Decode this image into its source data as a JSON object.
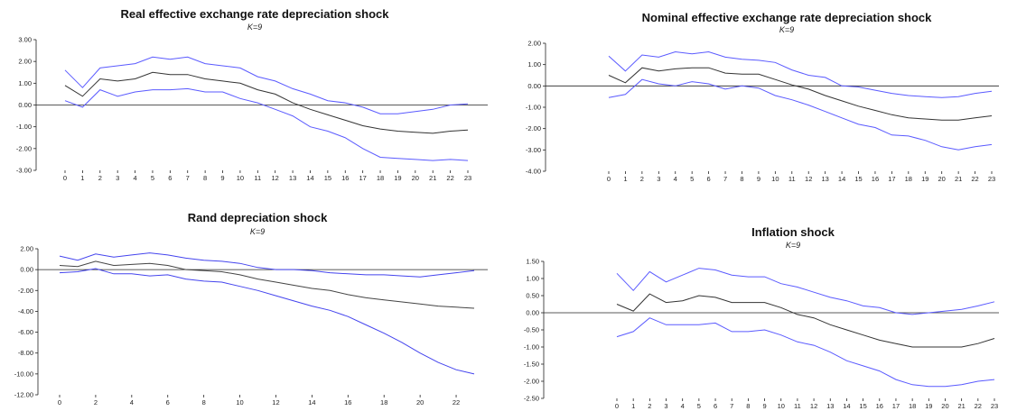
{
  "chart_data": [
    {
      "type": "line",
      "title": "Real effective exchange rate depreciation shock",
      "subtitle": "K=9",
      "xlabel": "",
      "ylabel": "",
      "x": [
        0,
        1,
        2,
        3,
        4,
        5,
        6,
        7,
        8,
        9,
        10,
        11,
        12,
        13,
        14,
        15,
        16,
        17,
        18,
        19,
        20,
        21,
        22,
        23
      ],
      "x_ticks": [
        "0",
        "1",
        "2",
        "3",
        "4",
        "5",
        "6",
        "7",
        "8",
        "9",
        "10",
        "11",
        "12",
        "13",
        "14",
        "15",
        "16",
        "17",
        "18",
        "19",
        "20",
        "21",
        "22",
        "23"
      ],
      "ylim": [
        -3,
        3
      ],
      "y_ticks": [
        "3.00",
        "2.00",
        "1.00",
        "0.00",
        "-1.00",
        "-2.00",
        "-3.00"
      ],
      "series": [
        {
          "role": "upper",
          "color": "#5a5aff",
          "values": [
            1.6,
            0.8,
            1.7,
            1.8,
            1.9,
            2.2,
            2.1,
            2.2,
            1.9,
            1.8,
            1.7,
            1.3,
            1.1,
            0.75,
            0.5,
            0.2,
            0.1,
            -0.1,
            -0.4,
            -0.4,
            -0.3,
            -0.2,
            0.0,
            0.05
          ]
        },
        {
          "role": "response",
          "color": "#333333",
          "values": [
            0.9,
            0.4,
            1.2,
            1.1,
            1.2,
            1.5,
            1.4,
            1.4,
            1.2,
            1.1,
            1.0,
            0.7,
            0.5,
            0.1,
            -0.2,
            -0.45,
            -0.7,
            -0.95,
            -1.1,
            -1.2,
            -1.25,
            -1.3,
            -1.2,
            -1.15
          ]
        },
        {
          "role": "lower",
          "color": "#5a5aff",
          "values": [
            0.2,
            -0.1,
            0.7,
            0.4,
            0.6,
            0.7,
            0.7,
            0.75,
            0.6,
            0.6,
            0.3,
            0.1,
            -0.2,
            -0.5,
            -1.0,
            -1.2,
            -1.5,
            -2.0,
            -2.4,
            -2.45,
            -2.5,
            -2.55,
            -2.5,
            -2.55
          ]
        }
      ]
    },
    {
      "type": "line",
      "title": "Nominal effective exchange rate depreciation shock",
      "subtitle": "K=9",
      "xlabel": "",
      "ylabel": "",
      "x": [
        0,
        1,
        2,
        3,
        4,
        5,
        6,
        7,
        8,
        9,
        10,
        11,
        12,
        13,
        14,
        15,
        16,
        17,
        18,
        19,
        20,
        21,
        22,
        23
      ],
      "x_ticks": [
        "0",
        "1",
        "2",
        "3",
        "4",
        "5",
        "6",
        "7",
        "8",
        "9",
        "10",
        "11",
        "12",
        "13",
        "14",
        "15",
        "16",
        "17",
        "18",
        "19",
        "20",
        "21",
        "22",
        "23"
      ],
      "ylim": [
        -4,
        2
      ],
      "y_ticks": [
        "2.00",
        "1.00",
        "0.00",
        "-1.00",
        "-2.00",
        "-3.00",
        "-4.00"
      ],
      "series": [
        {
          "role": "upper",
          "color": "#5a5aff",
          "values": [
            1.4,
            0.7,
            1.45,
            1.35,
            1.6,
            1.5,
            1.6,
            1.35,
            1.25,
            1.2,
            1.1,
            0.75,
            0.5,
            0.4,
            0.0,
            -0.05,
            -0.2,
            -0.35,
            -0.45,
            -0.5,
            -0.55,
            -0.5,
            -0.35,
            -0.25
          ]
        },
        {
          "role": "response",
          "color": "#333333",
          "values": [
            0.5,
            0.15,
            0.85,
            0.7,
            0.8,
            0.85,
            0.85,
            0.6,
            0.55,
            0.55,
            0.3,
            0.05,
            -0.15,
            -0.45,
            -0.7,
            -0.95,
            -1.15,
            -1.35,
            -1.5,
            -1.55,
            -1.6,
            -1.6,
            -1.5,
            -1.4
          ]
        },
        {
          "role": "lower",
          "color": "#5a5aff",
          "values": [
            -0.55,
            -0.4,
            0.3,
            0.1,
            0.0,
            0.2,
            0.1,
            -0.15,
            0.0,
            -0.1,
            -0.45,
            -0.65,
            -0.9,
            -1.2,
            -1.5,
            -1.8,
            -1.95,
            -2.3,
            -2.35,
            -2.55,
            -2.85,
            -3.0,
            -2.85,
            -2.75
          ]
        }
      ]
    },
    {
      "type": "line",
      "title": "Rand depreciation shock",
      "subtitle": "K=9",
      "xlabel": "",
      "ylabel": "",
      "x": [
        0,
        1,
        2,
        3,
        4,
        5,
        6,
        7,
        8,
        9,
        10,
        11,
        12,
        13,
        14,
        15,
        16,
        17,
        18,
        19,
        20,
        21,
        22,
        23
      ],
      "x_ticks": [
        "0",
        "2",
        "4",
        "6",
        "8",
        "10",
        "12",
        "14",
        "16",
        "18",
        "20",
        "22"
      ],
      "ylim": [
        -12,
        2
      ],
      "y_ticks": [
        "2.00",
        "0.00",
        "-2.00",
        "-4.00",
        "-6.00",
        "-8.00",
        "-10.00",
        "-12.00"
      ],
      "series": [
        {
          "role": "upper",
          "color": "#4444ee",
          "values": [
            1.3,
            0.9,
            1.5,
            1.2,
            1.4,
            1.6,
            1.4,
            1.1,
            0.9,
            0.8,
            0.6,
            0.2,
            0.0,
            0.0,
            -0.1,
            -0.3,
            -0.4,
            -0.5,
            -0.5,
            -0.6,
            -0.7,
            -0.5,
            -0.3,
            -0.1
          ]
        },
        {
          "role": "response",
          "color": "#444444",
          "values": [
            0.4,
            0.3,
            0.8,
            0.4,
            0.5,
            0.6,
            0.4,
            0.0,
            -0.1,
            -0.2,
            -0.5,
            -0.9,
            -1.2,
            -1.5,
            -1.8,
            -2.0,
            -2.4,
            -2.7,
            -2.9,
            -3.1,
            -3.3,
            -3.5,
            -3.6,
            -3.7
          ]
        },
        {
          "role": "lower",
          "color": "#4444ee",
          "values": [
            -0.3,
            -0.2,
            0.1,
            -0.4,
            -0.4,
            -0.6,
            -0.5,
            -0.9,
            -1.1,
            -1.2,
            -1.6,
            -2.0,
            -2.5,
            -3.0,
            -3.5,
            -3.9,
            -4.5,
            -5.3,
            -6.1,
            -7.0,
            -8.0,
            -8.9,
            -9.6,
            -10.0
          ]
        }
      ]
    },
    {
      "type": "line",
      "title": "Inflation shock",
      "subtitle": "K=9",
      "xlabel": "",
      "ylabel": "",
      "x": [
        0,
        1,
        2,
        3,
        4,
        5,
        6,
        7,
        8,
        9,
        10,
        11,
        12,
        13,
        14,
        15,
        16,
        17,
        18,
        19,
        20,
        21,
        22,
        23
      ],
      "x_ticks": [
        "0",
        "1",
        "2",
        "3",
        "4",
        "5",
        "6",
        "7",
        "8",
        "9",
        "10",
        "11",
        "12",
        "13",
        "14",
        "15",
        "16",
        "17",
        "18",
        "19",
        "20",
        "21",
        "22",
        "23"
      ],
      "ylim": [
        -2.5,
        1.5
      ],
      "y_ticks": [
        "1.50",
        "1.00",
        "0.50",
        "0.00",
        "-0.50",
        "-1.00",
        "-1.50",
        "-2.00",
        "-2.50"
      ],
      "series": [
        {
          "role": "upper",
          "color": "#5a5aff",
          "values": [
            1.15,
            0.65,
            1.2,
            0.9,
            1.1,
            1.3,
            1.25,
            1.1,
            1.05,
            1.05,
            0.85,
            0.75,
            0.6,
            0.45,
            0.35,
            0.2,
            0.15,
            0.0,
            -0.05,
            0.0,
            0.05,
            0.1,
            0.2,
            0.32
          ]
        },
        {
          "role": "response",
          "color": "#333333",
          "values": [
            0.25,
            0.05,
            0.55,
            0.3,
            0.35,
            0.5,
            0.45,
            0.3,
            0.3,
            0.3,
            0.15,
            -0.05,
            -0.15,
            -0.35,
            -0.5,
            -0.65,
            -0.8,
            -0.9,
            -1.0,
            -1.0,
            -1.0,
            -1.0,
            -0.9,
            -0.75
          ]
        },
        {
          "role": "lower",
          "color": "#5a5aff",
          "values": [
            -0.7,
            -0.55,
            -0.15,
            -0.35,
            -0.35,
            -0.35,
            -0.3,
            -0.55,
            -0.55,
            -0.5,
            -0.65,
            -0.85,
            -0.95,
            -1.15,
            -1.4,
            -1.55,
            -1.7,
            -1.95,
            -2.1,
            -2.15,
            -2.15,
            -2.1,
            -2.0,
            -1.95
          ]
        }
      ]
    }
  ]
}
